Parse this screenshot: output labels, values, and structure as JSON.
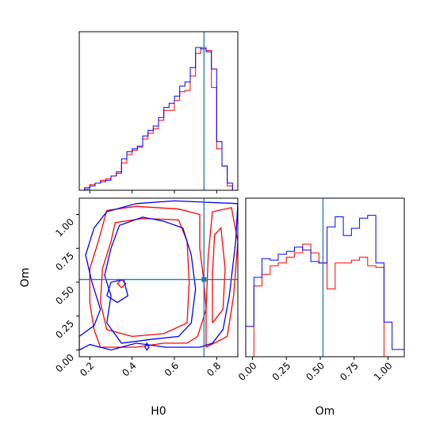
{
  "chart_data": {
    "type": "corner",
    "parameters": [
      "H0",
      "Om"
    ],
    "truths": {
      "H0": 0.74,
      "Om": 0.52
    },
    "colors": {
      "red": "#ff0000",
      "blue": "#0000ff",
      "truth": "#1f77b4"
    },
    "x_labels": {
      "hist_h0": "",
      "hist_om": "Om",
      "contour": "H0"
    },
    "y_labels": {
      "contour": "Om"
    },
    "panels": [
      {
        "type": "histogram",
        "parameter": "H0",
        "xlim": [
          0.15,
          0.9
        ],
        "bin_edges": [
          0.15,
          0.175,
          0.2,
          0.225,
          0.25,
          0.275,
          0.3,
          0.325,
          0.35,
          0.375,
          0.4,
          0.425,
          0.45,
          0.475,
          0.5,
          0.525,
          0.55,
          0.575,
          0.6,
          0.625,
          0.65,
          0.675,
          0.7,
          0.725,
          0.75,
          0.775,
          0.8,
          0.825,
          0.85,
          0.875,
          0.9
        ],
        "series": [
          {
            "color": "red",
            "values": [
              0.0,
              0.02,
              0.04,
              0.05,
              0.07,
              0.08,
              0.1,
              0.13,
              0.19,
              0.25,
              0.28,
              0.3,
              0.36,
              0.4,
              0.43,
              0.49,
              0.56,
              0.56,
              0.63,
              0.69,
              0.7,
              0.8,
              0.96,
              1.0,
              0.98,
              0.72,
              0.29,
              0.17,
              0.03,
              0.0
            ]
          },
          {
            "color": "blue",
            "values": [
              0.0,
              0.01,
              0.03,
              0.05,
              0.06,
              0.07,
              0.1,
              0.12,
              0.22,
              0.27,
              0.29,
              0.31,
              0.38,
              0.42,
              0.45,
              0.51,
              0.58,
              0.61,
              0.66,
              0.73,
              0.76,
              0.86,
              1.0,
              0.99,
              0.97,
              0.85,
              0.34,
              0.17,
              0.05,
              0.0
            ]
          }
        ],
        "xticks": []
      },
      {
        "type": "contour",
        "x_parameter": "H0",
        "y_parameter": "Om",
        "xlim": [
          0.15,
          0.9
        ],
        "ylim": [
          -0.05,
          1.12
        ],
        "xticks": [
          "0.2",
          "0.4",
          "0.6",
          "0.8"
        ],
        "yticks": [
          "0.00",
          "0.25",
          "0.50",
          "0.75",
          "1.00"
        ],
        "contours": [
          {
            "color": "red",
            "points": [
              [
                0.25,
                0.02
              ],
              [
                0.42,
                0.02
              ],
              [
                0.55,
                0.05
              ],
              [
                0.66,
                0.05
              ],
              [
                0.71,
                0.1
              ],
              [
                0.75,
                0.3
              ],
              [
                0.74,
                0.5
              ],
              [
                0.72,
                0.75
              ],
              [
                0.72,
                1.0
              ],
              [
                0.62,
                1.04
              ],
              [
                0.42,
                1.06
              ],
              [
                0.28,
                1.03
              ],
              [
                0.24,
                0.8
              ],
              [
                0.2,
                0.6
              ],
              [
                0.2,
                0.35
              ],
              [
                0.22,
                0.15
              ],
              [
                0.25,
                0.02
              ]
            ]
          },
          {
            "color": "red",
            "points": [
              [
                0.28,
                0.15
              ],
              [
                0.4,
                0.1
              ],
              [
                0.55,
                0.12
              ],
              [
                0.66,
                0.2
              ],
              [
                0.67,
                0.5
              ],
              [
                0.66,
                0.8
              ],
              [
                0.62,
                0.96
              ],
              [
                0.45,
                0.97
              ],
              [
                0.32,
                0.94
              ],
              [
                0.3,
                0.8
              ],
              [
                0.26,
                0.6
              ],
              [
                0.25,
                0.35
              ],
              [
                0.28,
                0.15
              ]
            ]
          },
          {
            "color": "red",
            "points": [
              [
                0.75,
                0.02
              ],
              [
                0.85,
                0.1
              ],
              [
                0.88,
                0.4
              ],
              [
                0.9,
                0.8
              ],
              [
                0.87,
                1.05
              ],
              [
                0.78,
                1.02
              ],
              [
                0.76,
                0.7
              ],
              [
                0.75,
                0.3
              ],
              [
                0.75,
                0.02
              ]
            ]
          },
          {
            "color": "red",
            "points": [
              [
                0.78,
                0.2
              ],
              [
                0.83,
                0.3
              ],
              [
                0.84,
                0.6
              ],
              [
                0.82,
                0.9
              ],
              [
                0.79,
                0.85
              ],
              [
                0.78,
                0.55
              ],
              [
                0.78,
                0.2
              ]
            ]
          },
          {
            "color": "red",
            "points": [
              [
                0.33,
                0.49
              ],
              [
                0.35,
                0.52
              ],
              [
                0.37,
                0.49
              ],
              [
                0.35,
                0.46
              ],
              [
                0.33,
                0.49
              ]
            ]
          },
          {
            "color": "blue",
            "points": [
              [
                0.15,
                0.0
              ],
              [
                0.2,
                0.04
              ],
              [
                0.3,
                0.0
              ],
              [
                0.42,
                0.05
              ],
              [
                0.56,
                0.02
              ],
              [
                0.72,
                0.02
              ],
              [
                0.78,
                0.05
              ],
              [
                0.83,
                0.15
              ],
              [
                0.86,
                0.4
              ],
              [
                0.89,
                0.8
              ],
              [
                0.9,
                1.08
              ],
              [
                0.6,
                1.1
              ],
              [
                0.42,
                1.08
              ],
              [
                0.28,
                1.02
              ],
              [
                0.22,
                0.9
              ],
              [
                0.18,
                0.7
              ],
              [
                0.21,
                0.5
              ],
              [
                0.25,
                0.3
              ],
              [
                0.22,
                0.18
              ],
              [
                0.15,
                0.1
              ],
              [
                0.15,
                0.0
              ]
            ]
          },
          {
            "color": "blue",
            "points": [
              [
                0.28,
                0.2
              ],
              [
                0.35,
                0.05
              ],
              [
                0.5,
                0.08
              ],
              [
                0.62,
                0.1
              ],
              [
                0.68,
                0.2
              ],
              [
                0.7,
                0.45
              ],
              [
                0.68,
                0.7
              ],
              [
                0.64,
                0.9
              ],
              [
                0.55,
                0.95
              ],
              [
                0.45,
                0.98
              ],
              [
                0.34,
                0.92
              ],
              [
                0.3,
                0.75
              ],
              [
                0.27,
                0.55
              ],
              [
                0.3,
                0.4
              ],
              [
                0.28,
                0.2
              ]
            ]
          },
          {
            "color": "blue",
            "points": [
              [
                0.28,
                0.4
              ],
              [
                0.33,
                0.35
              ],
              [
                0.38,
                0.4
              ],
              [
                0.36,
                0.52
              ],
              [
                0.3,
                0.5
              ],
              [
                0.28,
                0.4
              ]
            ]
          },
          {
            "color": "blue",
            "points": [
              [
                0.46,
                0.02
              ],
              [
                0.47,
                0.05
              ],
              [
                0.48,
                0.02
              ],
              [
                0.47,
                0.0
              ],
              [
                0.46,
                0.02
              ]
            ]
          }
        ]
      },
      {
        "type": "histogram",
        "parameter": "Om",
        "xlim": [
          -0.05,
          1.12
        ],
        "bin_edges": [
          -0.05,
          0.01,
          0.07,
          0.13,
          0.19,
          0.25,
          0.31,
          0.37,
          0.43,
          0.49,
          0.55,
          0.61,
          0.67,
          0.73,
          0.79,
          0.85,
          0.91,
          0.97,
          1.03,
          1.09,
          1.12
        ],
        "series": [
          {
            "color": "red",
            "values": [
              0.0,
              0.49,
              0.57,
              0.63,
              0.65,
              0.69,
              0.72,
              0.78,
              0.72,
              0.65,
              0.47,
              0.65,
              0.65,
              0.67,
              0.69,
              0.63,
              0.62,
              0.0,
              0.0,
              0.0
            ]
          },
          {
            "color": "blue",
            "values": [
              0.21,
              0.55,
              0.68,
              0.67,
              0.71,
              0.73,
              0.76,
              0.74,
              0.66,
              0.65,
              0.9,
              0.97,
              0.84,
              0.89,
              0.96,
              0.98,
              0.65,
              0.24,
              0.05,
              0.05
            ]
          }
        ],
        "xticks": [
          "0.00",
          "0.25",
          "0.50",
          "0.75",
          "1.00"
        ]
      }
    ]
  }
}
